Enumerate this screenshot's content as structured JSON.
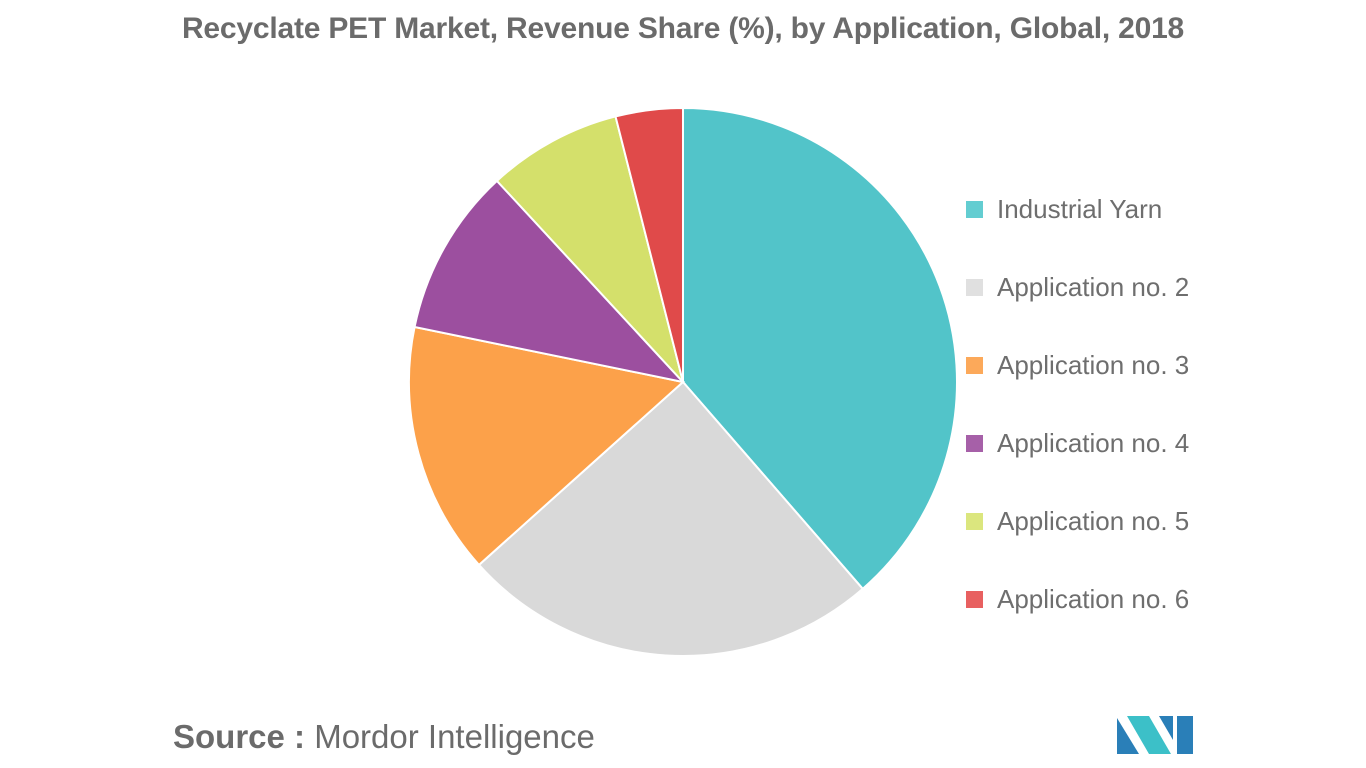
{
  "chart_data": {
    "type": "pie",
    "title": "Recyclate PET Market, Revenue Share (%), by Application, Global, 2018",
    "categories": [
      "Industrial Yarn",
      "Application no. 2",
      "Application no. 3",
      "Application no. 4",
      "Application no. 5",
      "Application no. 6"
    ],
    "values": [
      39,
      25,
      15,
      10,
      8,
      4
    ],
    "colors": [
      "#52c4c9",
      "#d9d9d9",
      "#fca14a",
      "#9c4f9f",
      "#d4e06b",
      "#e04a4a"
    ],
    "legend_position": "right",
    "legend": [
      {
        "label": "Industrial Yarn",
        "color": "#63cdd1"
      },
      {
        "label": "Application no. 2",
        "color": "#e0e0e0"
      },
      {
        "label": "Application no. 3",
        "color": "#fca95a"
      },
      {
        "label": "Application no. 4",
        "color": "#a660a8"
      },
      {
        "label": "Application no. 5",
        "color": "#dbe67e"
      },
      {
        "label": "Application no. 6",
        "color": "#e86060"
      }
    ]
  },
  "source": {
    "prefix": "Source :",
    "name": "Mordor Intelligence"
  },
  "logo": {
    "icon": "mordor-intelligence-logo-icon",
    "colors": [
      "#2a7fb8",
      "#3cc0c8"
    ]
  }
}
